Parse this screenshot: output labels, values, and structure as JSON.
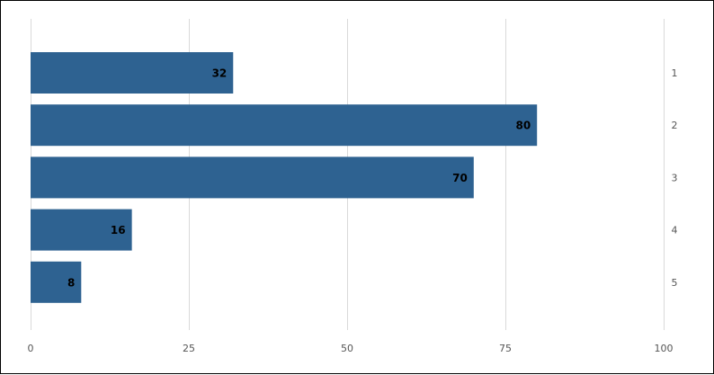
{
  "chart_data": {
    "type": "bar",
    "orientation": "horizontal",
    "categories": [
      "1",
      "2",
      "3",
      "4",
      "5"
    ],
    "values": [
      32,
      80,
      70,
      16,
      8
    ],
    "data_labels": [
      "32",
      "80",
      "70",
      "16",
      "8"
    ],
    "title": "",
    "xlabel": "",
    "ylabel": "",
    "xlim": [
      0,
      100
    ],
    "x_ticks": [
      0,
      25,
      50,
      75,
      100
    ],
    "x_tick_labels": [
      "0",
      "25",
      "50",
      "75",
      "100"
    ],
    "category_axis_position": "right",
    "grid": true,
    "legend": "none",
    "colors": {
      "bar": "#2e6291",
      "grid": "#d9d9d9"
    }
  }
}
